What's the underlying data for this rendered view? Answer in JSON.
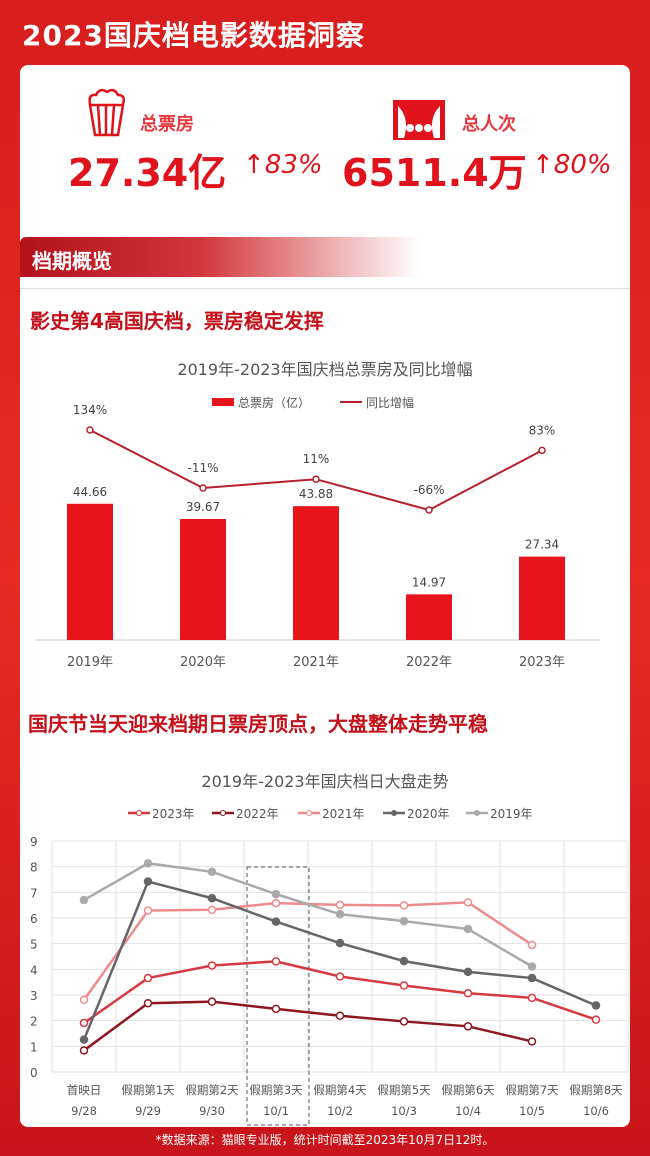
{
  "title": "2023国庆档电影数据洞察",
  "stats": {
    "box_office": {
      "label": "总票房",
      "value": "27.34亿",
      "change": "↑83%",
      "icon": "popcorn-icon"
    },
    "admissions": {
      "label": "总人次",
      "value": "6511.4万",
      "change": "↑80%",
      "icon": "theater-icon"
    }
  },
  "section_title": "档期概览",
  "headline1": "影史第4高国庆档，票房稳定发挥",
  "headline2": "国庆节当天迎来档期日票房顶点，大盘整体走势平稳",
  "source": "*数据来源：猫眼专业版，统计时间截至2023年10月7日12时。",
  "colors": {
    "bar": "#e8141c",
    "line": "#b5202a",
    "s2023": "#d63a3f",
    "s2022": "#8e1720",
    "s2021": "#ee8a8c",
    "s2020": "#666666",
    "s2019": "#aaaaaa"
  },
  "chart_data": [
    {
      "type": "bar+line",
      "title": "2019年-2023年国庆档总票房及同比增幅",
      "categories": [
        "2019年",
        "2020年",
        "2021年",
        "2022年",
        "2023年"
      ],
      "series": [
        {
          "name": "总票房（亿）",
          "type": "bar",
          "values": [
            44.66,
            39.67,
            43.88,
            14.97,
            27.34
          ],
          "labels": [
            "44.66",
            "39.67",
            "43.88",
            "14.97",
            "27.34"
          ]
        },
        {
          "name": "同比增幅",
          "type": "line",
          "values": [
            134,
            -11,
            11,
            -66,
            83
          ],
          "labels": [
            "134%",
            "-11%",
            "11%",
            "-66%",
            "83%"
          ]
        }
      ],
      "legend": "top"
    },
    {
      "type": "line",
      "title": "2019年-2023年国庆档日大盘走势",
      "categories": [
        "首映日",
        "假期第1天",
        "假期第2天",
        "假期第3天",
        "假期第4天",
        "假期第5天",
        "假期第6天",
        "假期第7天",
        "假期第8天"
      ],
      "dates": [
        "9/28",
        "9/29",
        "9/30",
        "10/1",
        "10/2",
        "10/3",
        "10/4",
        "10/5",
        "10/6"
      ],
      "ylim": [
        0,
        9
      ],
      "yticks": [
        "0",
        "1",
        "2",
        "3",
        "4",
        "5",
        "6",
        "7",
        "8",
        "9"
      ],
      "grid": true,
      "legend": "top",
      "highlight": "10/1",
      "series": [
        {
          "name": "2023年",
          "values": [
            1.91,
            3.66,
            4.15,
            4.31,
            3.72,
            3.37,
            3.07,
            2.89,
            2.04
          ]
        },
        {
          "name": "2022年",
          "values": [
            0.84,
            2.68,
            2.74,
            2.46,
            2.19,
            1.97,
            1.78,
            1.19,
            null
          ]
        },
        {
          "name": "2021年",
          "values": [
            2.81,
            6.29,
            6.32,
            6.58,
            6.51,
            6.49,
            6.61,
            4.95,
            null
          ]
        },
        {
          "name": "2020年",
          "values": [
            1.26,
            7.42,
            6.77,
            5.86,
            5.02,
            4.32,
            3.9,
            3.66,
            2.59
          ]
        },
        {
          "name": "2019年",
          "values": [
            6.7,
            8.13,
            7.8,
            6.93,
            6.15,
            5.88,
            5.57,
            4.11,
            null
          ]
        }
      ]
    }
  ]
}
